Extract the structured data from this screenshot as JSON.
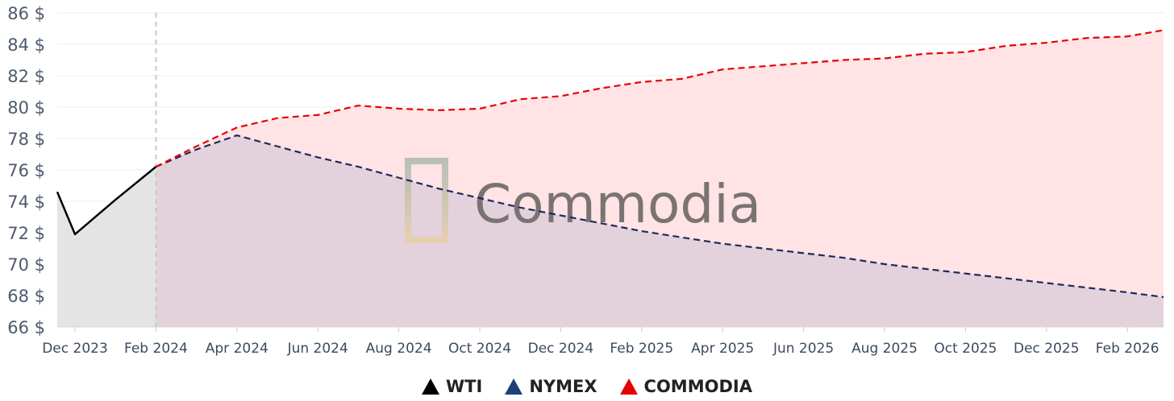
{
  "chart_data": {
    "type": "area",
    "y_unit_suffix": " $",
    "ylim": [
      66,
      86
    ],
    "y_ticks": [
      66,
      68,
      70,
      72,
      74,
      76,
      78,
      80,
      82,
      84,
      86
    ],
    "x_ticks": [
      "Dec 2023",
      "Feb 2024",
      "Apr 2024",
      "Jun 2024",
      "Aug 2024",
      "Oct 2024",
      "Dec 2024",
      "Feb 2025",
      "Apr 2025",
      "Jun 2025",
      "Aug 2025",
      "Oct 2025",
      "Dec 2025",
      "Feb 2026"
    ],
    "forecast_start": "Feb 2024",
    "series": [
      {
        "name": "WTI",
        "color": "#000000",
        "line_style": "solid",
        "points": [
          [
            "Nov 2023",
            74.6
          ],
          [
            "Dec 2023",
            71.9
          ],
          [
            "Jan 2024",
            74.1
          ],
          [
            "Feb 2024",
            76.2
          ]
        ]
      },
      {
        "name": "NYMEX",
        "color": "#1f2a5c",
        "line_style": "dashed",
        "points": [
          [
            "Feb 2024",
            76.2
          ],
          [
            "Mar 2024",
            77.3
          ],
          [
            "Apr 2024",
            78.2
          ],
          [
            "May 2024",
            77.5
          ],
          [
            "Jun 2024",
            76.8
          ],
          [
            "Jul 2024",
            76.2
          ],
          [
            "Aug 2024",
            75.5
          ],
          [
            "Sep 2024",
            74.8
          ],
          [
            "Oct 2024",
            74.2
          ],
          [
            "Nov 2024",
            73.6
          ],
          [
            "Dec 2024",
            73.1
          ],
          [
            "Jan 2025",
            72.6
          ],
          [
            "Feb 2025",
            72.1
          ],
          [
            "Mar 2025",
            71.7
          ],
          [
            "Apr 2025",
            71.3
          ],
          [
            "May 2025",
            71.0
          ],
          [
            "Jun 2025",
            70.7
          ],
          [
            "Jul 2025",
            70.4
          ],
          [
            "Aug 2025",
            70.0
          ],
          [
            "Sep 2025",
            69.7
          ],
          [
            "Oct 2025",
            69.4
          ],
          [
            "Nov 2025",
            69.1
          ],
          [
            "Dec 2025",
            68.8
          ],
          [
            "Jan 2026",
            68.5
          ],
          [
            "Feb 2026",
            68.2
          ],
          [
            "Mar 2026",
            67.9
          ]
        ]
      },
      {
        "name": "COMMODIA",
        "color": "#e60000",
        "line_style": "dashed",
        "points": [
          [
            "Feb 2024",
            76.2
          ],
          [
            "Mar 2024",
            77.5
          ],
          [
            "Apr 2024",
            78.7
          ],
          [
            "May 2024",
            79.3
          ],
          [
            "Jun 2024",
            79.5
          ],
          [
            "Jul 2024",
            80.1
          ],
          [
            "Aug 2024",
            79.9
          ],
          [
            "Sep 2024",
            79.8
          ],
          [
            "Oct 2024",
            79.9
          ],
          [
            "Nov 2024",
            80.5
          ],
          [
            "Dec 2024",
            80.7
          ],
          [
            "Jan 2025",
            81.2
          ],
          [
            "Feb 2025",
            81.6
          ],
          [
            "Mar 2025",
            81.8
          ],
          [
            "Apr 2025",
            82.4
          ],
          [
            "May 2025",
            82.6
          ],
          [
            "Jun 2025",
            82.8
          ],
          [
            "Jul 2025",
            83.0
          ],
          [
            "Aug 2025",
            83.1
          ],
          [
            "Sep 2025",
            83.4
          ],
          [
            "Oct 2025",
            83.5
          ],
          [
            "Nov 2025",
            83.9
          ],
          [
            "Dec 2025",
            84.1
          ],
          [
            "Jan 2026",
            84.4
          ],
          [
            "Feb 2026",
            84.5
          ],
          [
            "Mar 2026",
            84.9
          ]
        ]
      }
    ],
    "grid": "horizontal",
    "legend_position": "bottom-center",
    "watermark": "Commodia"
  },
  "colors": {
    "commodia_fill": "#ffe3e5",
    "nymex_fill": "#e3d2db",
    "wti_fill": "#e4e4e4",
    "divider": "#c8c8c8",
    "grid": "#ececec"
  }
}
